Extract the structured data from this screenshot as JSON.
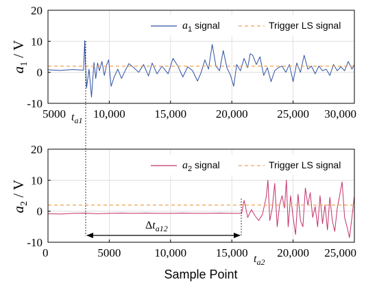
{
  "chart_data": [
    {
      "type": "line",
      "panel": "top",
      "xlim": [
        5000,
        30000
      ],
      "ylim": [
        -10,
        20
      ],
      "xticks": [
        5000,
        10000,
        15000,
        20000,
        25000,
        30000
      ],
      "xtick_labels": [
        "5000",
        "10,000",
        "15,000",
        "20,000",
        "25,000",
        "30,000"
      ],
      "yticks": [
        -10,
        0,
        10,
        20
      ],
      "ylabel": "a_1 / V",
      "ylabel_parts": {
        "var": "a",
        "sub": "1",
        "unit": " / V"
      },
      "grid": true,
      "legend_position": "top-right",
      "series": [
        {
          "name": "a_1 signal",
          "legend_parts": {
            "var": "a",
            "sub": "1",
            "rest": " signal"
          },
          "color": "#2c4fa3",
          "style": "solid",
          "x": [
            5000,
            6000,
            7000,
            7900,
            8000,
            8050,
            8150,
            8350,
            8550,
            8750,
            8900,
            9050,
            9200,
            9400,
            9600,
            9800,
            9950,
            10150,
            10400,
            10700,
            11000,
            11300,
            11600,
            12000,
            12400,
            12800,
            13200,
            13500,
            13900,
            14300,
            14800,
            15200,
            15600,
            16000,
            16400,
            16800,
            17200,
            17500,
            17800,
            18100,
            18400,
            18700,
            19000,
            19300,
            19600,
            19900,
            20150,
            20400,
            20700,
            21000,
            21300,
            21500,
            21700,
            22000,
            22300,
            22600,
            22900,
            23200,
            23500,
            23800,
            24100,
            24400,
            24700,
            25000,
            25300,
            25600,
            25900,
            26200,
            26500,
            26800,
            27100,
            27400,
            27700,
            28000,
            28300,
            28600,
            28900,
            29200,
            29500,
            29800,
            30000
          ],
          "y": [
            0.8,
            0.6,
            0.9,
            0.7,
            10.2,
            3.5,
            -5.0,
            1.0,
            -8.0,
            3.2,
            -2.0,
            3.0,
            0.5,
            3.5,
            -1.0,
            2.5,
            4.0,
            -4.5,
            -1.5,
            1.0,
            -2.0,
            0.5,
            2.8,
            1.5,
            0.0,
            2.5,
            -1.2,
            3.0,
            -0.5,
            2.0,
            -0.5,
            4.5,
            2.0,
            -1.5,
            1.8,
            0.5,
            -2.8,
            0.0,
            4.0,
            1.0,
            9.0,
            2.0,
            0.5,
            7.0,
            1.5,
            -1.0,
            -4.5,
            2.5,
            0.5,
            4.5,
            1.5,
            6.0,
            5.5,
            2.5,
            5.0,
            -1.0,
            1.5,
            -3.0,
            0.5,
            1.5,
            2.0,
            0.0,
            2.5,
            -3.0,
            3.0,
            0.0,
            5.5,
            1.0,
            2.0,
            -0.5,
            2.0,
            0.5,
            1.0,
            -1.0,
            2.5,
            0.5,
            1.8,
            0.5,
            3.5,
            1.0,
            2.5
          ]
        },
        {
          "name": "Trigger LS signal",
          "color": "#f0a050",
          "style": "dashed",
          "x": [
            5000,
            30000
          ],
          "y": [
            2,
            2
          ]
        }
      ],
      "annotations": [
        {
          "text_parts": {
            "var": "t",
            "sub": "a1"
          },
          "x": 8000
        }
      ]
    },
    {
      "type": "line",
      "panel": "bottom",
      "xlim": [
        0,
        25000
      ],
      "ylim": [
        -10,
        20
      ],
      "xticks": [
        0,
        5000,
        10000,
        15000,
        20000,
        25000
      ],
      "xtick_labels": [
        "0",
        "5000",
        "10,000",
        "15,000",
        "20,000",
        "25,000"
      ],
      "yticks": [
        -10,
        0,
        10,
        20
      ],
      "xlabel": "Sample Point",
      "ylabel": "a_2 / V",
      "ylabel_parts": {
        "var": "a",
        "sub": "2",
        "unit": " / V"
      },
      "grid": true,
      "legend_position": "top-right",
      "series": [
        {
          "name": "a_2 signal",
          "legend_parts": {
            "var": "a",
            "sub": "2",
            "rest": " signal"
          },
          "color": "#c2306a",
          "style": "solid",
          "x": [
            0,
            1000,
            2000,
            3000,
            4000,
            5000,
            6000,
            7000,
            8000,
            9000,
            10000,
            11000,
            12000,
            13000,
            14000,
            15000,
            15800,
            16000,
            16300,
            16600,
            16900,
            17200,
            17500,
            17800,
            17950,
            18100,
            18300,
            18500,
            18700,
            18900,
            19100,
            19300,
            19450,
            19600,
            19800,
            20000,
            20200,
            20400,
            20600,
            20800,
            21000,
            21200,
            21400,
            21600,
            21800,
            22000,
            22200,
            22400,
            22600,
            22800,
            23000,
            23200,
            23400,
            23600,
            23800,
            24000,
            24200,
            24400,
            24600,
            24800,
            25000
          ],
          "y": [
            -0.8,
            -0.9,
            -0.7,
            -0.6,
            -0.8,
            -0.7,
            -0.6,
            -0.7,
            -0.6,
            -0.7,
            -0.7,
            -0.6,
            -0.7,
            -0.7,
            -0.6,
            -0.7,
            -0.7,
            3.5,
            -2.0,
            0.5,
            -1.5,
            -3.0,
            -1.0,
            4.5,
            10.0,
            -3.0,
            1.0,
            9.0,
            -5.0,
            2.0,
            5.0,
            1.0,
            10.0,
            -5.0,
            5.0,
            -2.0,
            -7.5,
            5.5,
            -3.0,
            -5.0,
            7.5,
            2.0,
            6.0,
            -2.0,
            1.5,
            -5.0,
            5.0,
            -4.0,
            2.0,
            -6.0,
            4.5,
            -3.0,
            -6.5,
            1.0,
            5.0,
            9.5,
            -2.0,
            -5.0,
            -8.5,
            -2.0,
            5.0
          ]
        },
        {
          "name": "Trigger LS signal",
          "color": "#f0a050",
          "style": "dashed",
          "x": [
            0,
            25000
          ],
          "y": [
            2,
            2
          ]
        }
      ],
      "annotations": [
        {
          "text_parts": {
            "var": "t",
            "sub": "a2"
          },
          "x": 15800
        },
        {
          "text_parts": {
            "pre": "Δ",
            "var": "t",
            "sub": "a12"
          },
          "x_from": 3000,
          "x_to": 15800
        }
      ]
    }
  ]
}
